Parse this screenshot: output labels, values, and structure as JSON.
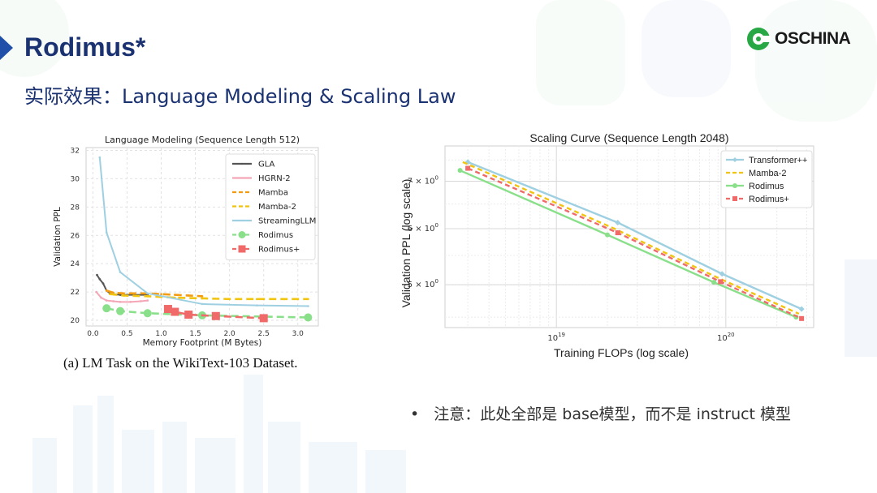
{
  "slide": {
    "title": "Rodimus*",
    "subtitle": "实际效果：Language Modeling & Scaling Law",
    "logo_text": "OSCHINA",
    "caption": "(a) LM Task on the WikiText-103 Dataset.",
    "bullet": "注意：此处全部是 base模型，而不是 instruct 模型",
    "accent": "#1a3272",
    "logo_accent": "#27a844"
  },
  "chart_data": [
    {
      "type": "line",
      "title": "Language Modeling (Sequence Length 512)",
      "xlabel": "Memory Footprint (M Bytes)",
      "ylabel": "Validation PPL",
      "xlim": [
        -0.1,
        3.3
      ],
      "ylim": [
        19.6,
        32.2
      ],
      "xticks": [
        "0.0",
        "0.5",
        "1.0",
        "1.5",
        "2.0",
        "2.5",
        "3.0"
      ],
      "yticks": [
        "20",
        "22",
        "24",
        "26",
        "28",
        "30",
        "32"
      ],
      "grid": true,
      "legend": "top-right",
      "series": [
        {
          "name": "GLA",
          "color": "#555555",
          "dash": "solid",
          "marker": "dot",
          "x": [
            0.06,
            0.1,
            0.15,
            0.2,
            0.25,
            0.3,
            0.4,
            0.5,
            0.6,
            0.8
          ],
          "y": [
            23.2,
            22.9,
            22.6,
            22.1,
            21.9,
            21.85,
            21.8,
            21.8,
            21.8,
            21.8
          ]
        },
        {
          "name": "HGRN-2",
          "color": "#f4a6b6",
          "dash": "solid",
          "marker": "dot",
          "x": [
            0.05,
            0.12,
            0.2,
            0.3,
            0.4,
            0.55,
            0.7,
            0.8
          ],
          "y": [
            22.0,
            21.6,
            21.4,
            21.35,
            21.3,
            21.3,
            21.35,
            21.4
          ]
        },
        {
          "name": "Mamba",
          "color": "#f39c12",
          "dash": "long",
          "marker": "dot",
          "x": [
            0.2,
            0.3,
            0.45,
            0.6,
            0.8,
            1.0,
            1.2,
            1.4,
            1.6
          ],
          "y": [
            22.1,
            21.95,
            21.9,
            21.9,
            21.9,
            21.85,
            21.8,
            21.75,
            21.7
          ]
        },
        {
          "name": "Mamba-2",
          "color": "#f1c40f",
          "dash": "long",
          "marker": "dot",
          "x": [
            0.25,
            0.45,
            0.8,
            1.2,
            1.6,
            2.0,
            2.4,
            2.8,
            3.15
          ],
          "y": [
            21.85,
            21.75,
            21.7,
            21.6,
            21.55,
            21.5,
            21.5,
            21.5,
            21.5
          ]
        },
        {
          "name": "StreamingLLM",
          "color": "#9ed0e2",
          "dash": "solid",
          "marker": "dot",
          "x": [
            0.1,
            0.2,
            0.4,
            0.8,
            1.6,
            2.4,
            3.15
          ],
          "y": [
            31.5,
            26.2,
            23.4,
            21.9,
            21.15,
            21.05,
            21.0
          ]
        },
        {
          "name": "Rodimus",
          "color": "#8ae08a",
          "dash": "long",
          "marker": "circle",
          "x": [
            0.2,
            0.4,
            0.8,
            1.6,
            3.15
          ],
          "y": [
            20.85,
            20.65,
            20.5,
            20.35,
            20.2
          ]
        },
        {
          "name": "Rodimus+",
          "color": "#f06a6a",
          "dash": "long",
          "marker": "square",
          "x": [
            1.1,
            1.2,
            1.4,
            1.8,
            2.5
          ],
          "y": [
            20.8,
            20.6,
            20.4,
            20.3,
            20.15
          ]
        }
      ]
    },
    {
      "type": "line",
      "title": "Scaling Curve (Sequence Length 2048)",
      "xlabel": "Training FLOPs (log scale)",
      "ylabel": "Validation PPL (log scale)",
      "xscale": "log",
      "yscale": "log",
      "xlim": [
        2.2e+18,
        3.3e+20
      ],
      "ylim": [
        4.35,
        7.85
      ],
      "xticks": [
        {
          "label": "10",
          "exp": "19",
          "value": 1e+19
        },
        {
          "label": "10",
          "exp": "20",
          "value": 1e+20
        }
      ],
      "yticks": [
        {
          "label": "5 × 10",
          "exp": "0",
          "value": 5
        },
        {
          "label": "6 × 10",
          "exp": "0",
          "value": 6
        },
        {
          "label": "7 × 10",
          "exp": "0",
          "value": 7
        }
      ],
      "grid": true,
      "legend": "top-right",
      "series": [
        {
          "name": "Transformer++",
          "color": "#9ed0e2",
          "dash": "solid",
          "marker": "diamond",
          "x": [
            3e+18,
            2.3e+19,
            9.5e+19,
            2.8e+20
          ],
          "y": [
            7.45,
            6.12,
            5.18,
            4.62
          ]
        },
        {
          "name": "Mamba-2",
          "color": "#f1c40f",
          "dash": "dash",
          "marker": "none",
          "x": [
            2.8e+18,
            2.2e+19,
            9.2e+19,
            2.7e+20
          ],
          "y": [
            7.45,
            6.0,
            5.1,
            4.55
          ]
        },
        {
          "name": "Rodimus",
          "color": "#8ae08a",
          "dash": "solid",
          "marker": "circle",
          "x": [
            2.7e+18,
            2e+19,
            8.5e+19,
            2.6e+20
          ],
          "y": [
            7.25,
            5.88,
            5.04,
            4.5
          ]
        },
        {
          "name": "Rodimus+",
          "color": "#f06a6a",
          "dash": "dash",
          "marker": "square",
          "x": [
            3e+18,
            2.3e+19,
            9.3e+19,
            2.8e+20
          ],
          "y": [
            7.3,
            5.92,
            5.05,
            4.48
          ]
        }
      ]
    }
  ]
}
